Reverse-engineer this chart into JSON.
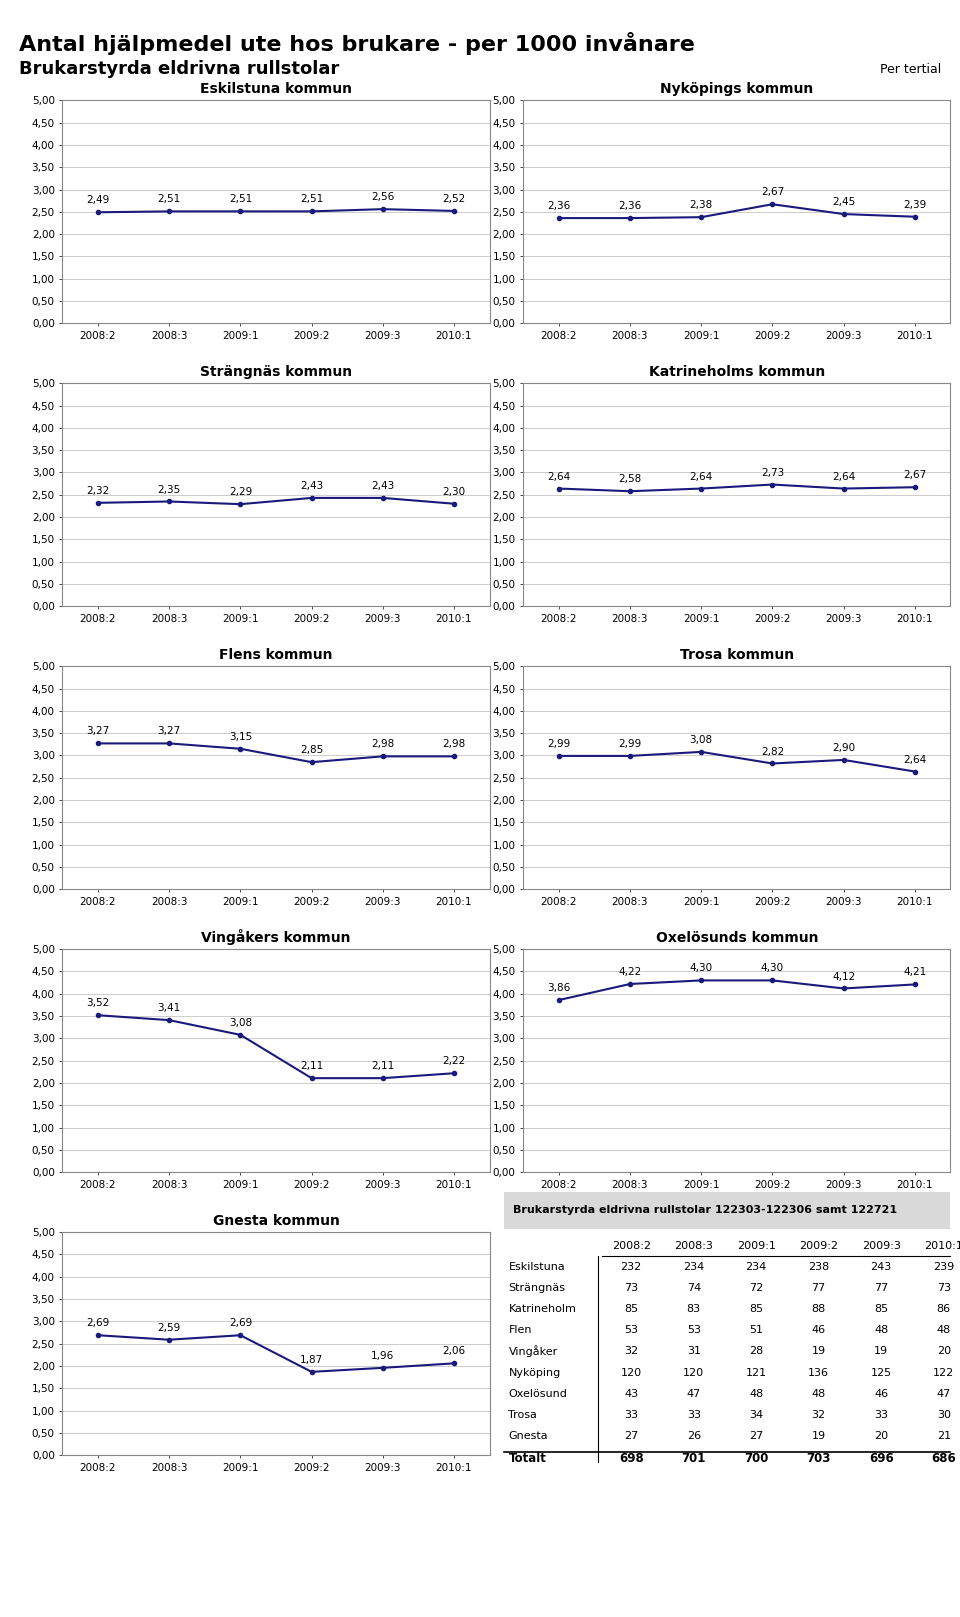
{
  "title1": "Antal hjälpmedel ute hos brukare - per 1000 invånare",
  "title2": "Brukarstyrda eldrivna rullstolar",
  "per_tertial": "Per tertial",
  "x_labels": [
    "2008:2",
    "2008:3",
    "2009:1",
    "2009:2",
    "2009:3",
    "2010:1"
  ],
  "ylim": [
    0.0,
    5.0
  ],
  "yticks": [
    0.0,
    0.5,
    1.0,
    1.5,
    2.0,
    2.5,
    3.0,
    3.5,
    4.0,
    4.5,
    5.0
  ],
  "ytick_labels": [
    "0,00",
    "0,50",
    "1,00",
    "1,50",
    "2,00",
    "2,50",
    "3,00",
    "3,50",
    "4,00",
    "4,50",
    "5,00"
  ],
  "charts": [
    {
      "title": "Eskilstuna kommun",
      "values": [
        2.49,
        2.51,
        2.51,
        2.51,
        2.56,
        2.52
      ]
    },
    {
      "title": "Nyköpings kommun",
      "values": [
        2.36,
        2.36,
        2.38,
        2.67,
        2.45,
        2.39
      ]
    },
    {
      "title": "Strängnäs kommun",
      "values": [
        2.32,
        2.35,
        2.29,
        2.43,
        2.43,
        2.3
      ]
    },
    {
      "title": "Katrineholms kommun",
      "values": [
        2.64,
        2.58,
        2.64,
        2.73,
        2.64,
        2.67
      ]
    },
    {
      "title": "Flens kommun",
      "values": [
        3.27,
        3.27,
        3.15,
        2.85,
        2.98,
        2.98
      ]
    },
    {
      "title": "Trosa kommun",
      "values": [
        2.99,
        2.99,
        3.08,
        2.82,
        2.9,
        2.64
      ]
    },
    {
      "title": "Vingåkers kommun",
      "values": [
        3.52,
        3.41,
        3.08,
        2.11,
        2.11,
        2.22
      ]
    },
    {
      "title": "Oxelösunds kommun",
      "values": [
        3.86,
        4.22,
        4.3,
        4.3,
        4.12,
        4.21
      ]
    },
    {
      "title": "Gnesta kommun",
      "values": [
        2.69,
        2.59,
        2.69,
        1.87,
        1.96,
        2.06
      ]
    }
  ],
  "table_title": "Brukarstyrda eldrivna rullstolar 122303-122306 samt 122721",
  "table_col_headers": [
    "2008:2",
    "2008:3",
    "2009:1",
    "2009:2",
    "2009:3",
    "2010:1"
  ],
  "table_rows": [
    [
      "Eskilstuna",
      232,
      234,
      234,
      238,
      243,
      239
    ],
    [
      "Strängnäs",
      73,
      74,
      72,
      77,
      77,
      73
    ],
    [
      "Katrineholm",
      85,
      83,
      85,
      88,
      85,
      86
    ],
    [
      "Flen",
      53,
      53,
      51,
      46,
      48,
      48
    ],
    [
      "Vingåker",
      32,
      31,
      28,
      19,
      19,
      20
    ],
    [
      "Nyköping",
      120,
      120,
      121,
      136,
      125,
      122
    ],
    [
      "Oxelösund",
      43,
      47,
      48,
      48,
      46,
      47
    ],
    [
      "Trosa",
      33,
      33,
      34,
      32,
      33,
      30
    ],
    [
      "Gnesta",
      27,
      26,
      27,
      19,
      20,
      21
    ]
  ],
  "table_total": [
    "Totalt",
    698,
    701,
    700,
    703,
    696,
    686
  ],
  "line_color": "#1a1a7c",
  "line_width": 1.5,
  "marker": "o",
  "marker_size": 3,
  "border_color": "#888888",
  "grid_color": "#cccccc",
  "table_bg": "#d9d9d9",
  "font_family": "Arial"
}
